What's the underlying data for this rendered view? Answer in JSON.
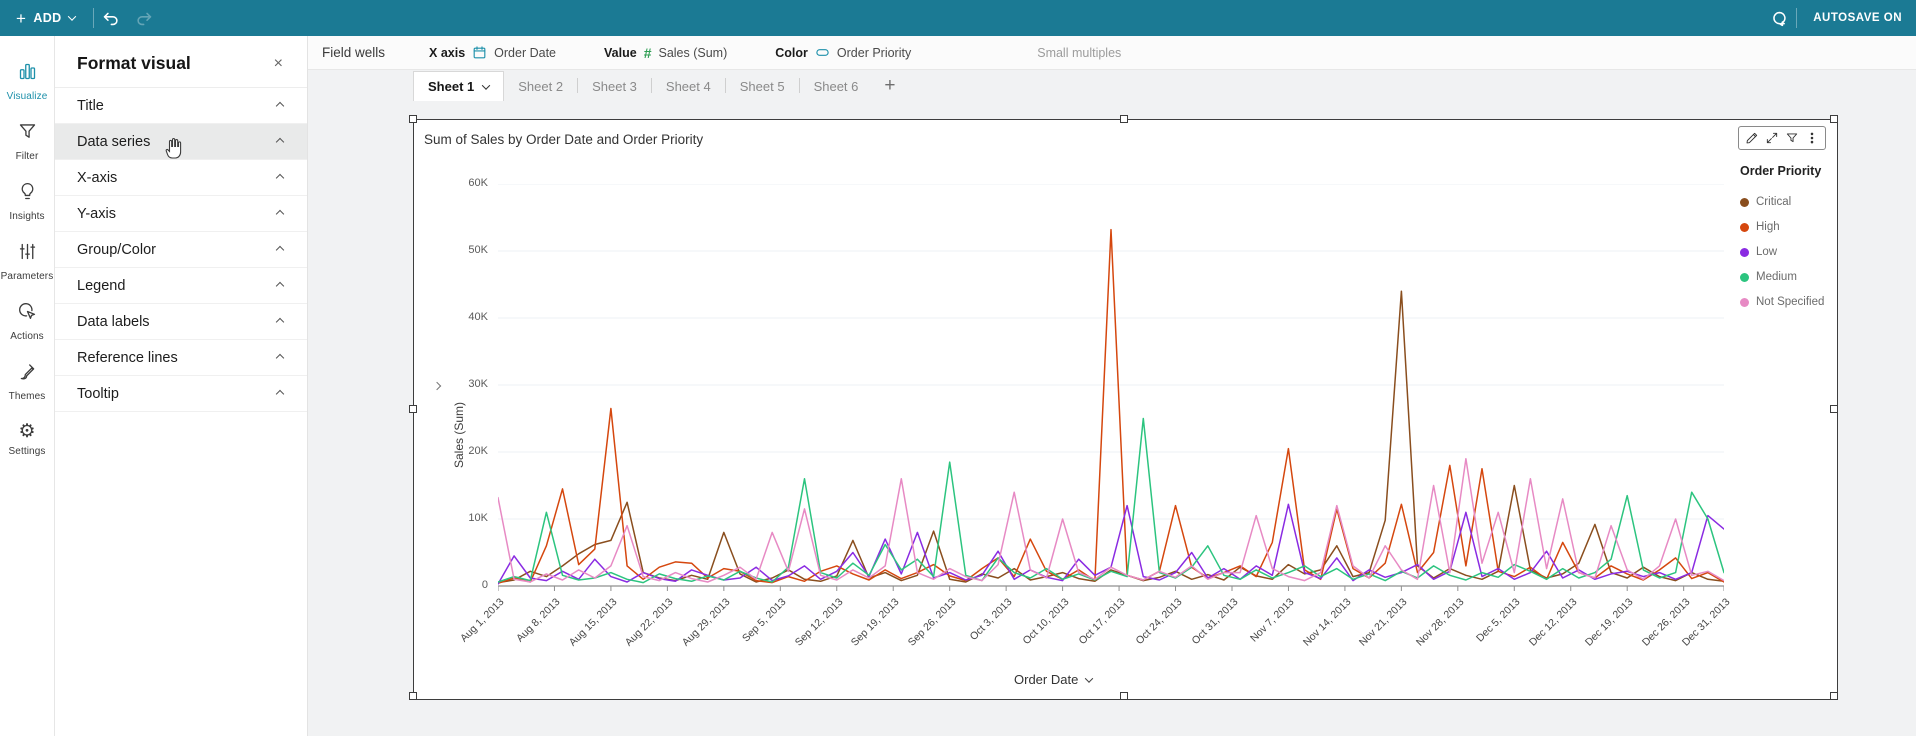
{
  "topbar": {
    "add_label": "ADD",
    "autosave_label": "AUTOSAVE ON"
  },
  "left_rail": {
    "items": [
      {
        "id": "visualize",
        "label": "Visualize",
        "icon": "bar-chart-icon",
        "active": true
      },
      {
        "id": "filter",
        "label": "Filter",
        "icon": "funnel-icon",
        "active": false
      },
      {
        "id": "insights",
        "label": "Insights",
        "icon": "lightbulb-icon",
        "active": false
      },
      {
        "id": "parameters",
        "label": "Parameters",
        "icon": "sliders-icon",
        "active": false
      },
      {
        "id": "actions",
        "label": "Actions",
        "icon": "cursor-click-icon",
        "active": false
      },
      {
        "id": "themes",
        "label": "Themes",
        "icon": "brush-icon",
        "active": false
      },
      {
        "id": "settings",
        "label": "Settings",
        "icon": "gear-icon",
        "active": false
      }
    ]
  },
  "format_panel": {
    "title": "Format visual",
    "close_label": "×",
    "active_section": "Data series",
    "sections": [
      "Title",
      "Data series",
      "X-axis",
      "Y-axis",
      "Group/Color",
      "Legend",
      "Data labels",
      "Reference lines",
      "Tooltip"
    ]
  },
  "field_wells": {
    "label": "Field wells",
    "wells": [
      {
        "name": "X axis",
        "field": "Order Date",
        "icon": "calendar-icon"
      },
      {
        "name": "Value",
        "field": "Sales (Sum)",
        "icon": "hash-icon"
      },
      {
        "name": "Color",
        "field": "Order Priority",
        "icon": "dimension-pill-icon"
      }
    ],
    "small_multiples_label": "Small multiples"
  },
  "sheet_tabs": {
    "tabs": [
      "Sheet 1",
      "Sheet 2",
      "Sheet 3",
      "Sheet 4",
      "Sheet 5",
      "Sheet 6"
    ],
    "active": "Sheet 1",
    "add_label": "+"
  },
  "visual": {
    "title": "Sum of Sales by Order Date and Order Priority",
    "toolbar_icons": [
      "pencil-icon",
      "expand-icon",
      "funnel-icon",
      "kebab-menu-icon"
    ]
  },
  "chart_data": {
    "type": "line",
    "title": "Sum of Sales by Order Date and Order Priority",
    "xlabel": "Order Date",
    "ylabel": "Sales (Sum)",
    "ylim": [
      0,
      60000
    ],
    "values_unit": "thousands",
    "grid": "horizontal",
    "y_ticks": [
      "0",
      "10K",
      "20K",
      "30K",
      "40K",
      "50K",
      "60K"
    ],
    "x_total_days": 152,
    "sample_interval_days": 2,
    "x_ticks": [
      {
        "label": "Aug 1, 2013",
        "day": 0
      },
      {
        "label": "Aug 8, 2013",
        "day": 7
      },
      {
        "label": "Aug 15, 2013",
        "day": 14
      },
      {
        "label": "Aug 22, 2013",
        "day": 21
      },
      {
        "label": "Aug 29, 2013",
        "day": 28
      },
      {
        "label": "Sep 5, 2013",
        "day": 35
      },
      {
        "label": "Sep 12, 2013",
        "day": 42
      },
      {
        "label": "Sep 19, 2013",
        "day": 49
      },
      {
        "label": "Sep 26, 2013",
        "day": 56
      },
      {
        "label": "Oct 3, 2013",
        "day": 63
      },
      {
        "label": "Oct 10, 2013",
        "day": 70
      },
      {
        "label": "Oct 17, 2013",
        "day": 77
      },
      {
        "label": "Oct 24, 2013",
        "day": 84
      },
      {
        "label": "Oct 31, 2013",
        "day": 91
      },
      {
        "label": "Nov 7, 2013",
        "day": 98
      },
      {
        "label": "Nov 14, 2013",
        "day": 105
      },
      {
        "label": "Nov 21, 2013",
        "day": 112
      },
      {
        "label": "Nov 28, 2013",
        "day": 119
      },
      {
        "label": "Dec 5, 2013",
        "day": 126
      },
      {
        "label": "Dec 12, 2013",
        "day": 133
      },
      {
        "label": "Dec 19, 2013",
        "day": 140
      },
      {
        "label": "Dec 26, 2013",
        "day": 147
      },
      {
        "label": "Dec 31, 2013",
        "day": 152
      }
    ],
    "legend": {
      "title": "Order Priority",
      "position": "right"
    },
    "series": [
      {
        "name": "Critical",
        "color": "#8a4e1e",
        "values": [
          0.5,
          0.9,
          2.2,
          1.4,
          3.0,
          4.8,
          6.2,
          6.8,
          12.5,
          2.0,
          1.2,
          0.8,
          1.6,
          1.0,
          8.0,
          1.8,
          0.6,
          1.2,
          2.4,
          1.0,
          0.7,
          1.5,
          6.8,
          1.2,
          2.0,
          0.8,
          1.6,
          8.2,
          1.0,
          0.6,
          1.8,
          1.2,
          2.6,
          0.9,
          1.4,
          2.0,
          1.1,
          0.7,
          2.4,
          1.6,
          0.8,
          1.3,
          2.2,
          1.0,
          1.7,
          0.9,
          2.8,
          1.5,
          1.0,
          3.2,
          1.8,
          2.4,
          6.0,
          1.4,
          2.0,
          9.8,
          44.0,
          3.0,
          1.2,
          2.6,
          1.6,
          1.0,
          2.2,
          15.0,
          2.4,
          1.2,
          1.8,
          3.4,
          9.2,
          2.0,
          1.2,
          2.8,
          1.4,
          0.8,
          2.0,
          1.0,
          0.7
        ]
      },
      {
        "name": "High",
        "color": "#d5470e",
        "values": [
          0.4,
          1.2,
          0.6,
          6.0,
          14.5,
          3.2,
          5.5,
          26.5,
          3.0,
          1.0,
          2.8,
          3.6,
          3.4,
          1.2,
          2.6,
          2.2,
          0.8,
          0.5,
          1.4,
          0.7,
          2.2,
          3.0,
          1.8,
          0.9,
          2.4,
          1.1,
          2.0,
          3.2,
          1.5,
          0.8,
          2.6,
          4.2,
          1.4,
          7.0,
          2.2,
          1.0,
          2.4,
          0.8,
          53.2,
          1.6,
          0.9,
          2.2,
          12.0,
          2.8,
          1.2,
          2.0,
          3.0,
          1.4,
          6.5,
          20.5,
          2.4,
          1.0,
          11.5,
          2.6,
          1.2,
          3.4,
          12.2,
          2.0,
          5.0,
          18.0,
          3.0,
          17.5,
          2.2,
          1.4,
          2.8,
          1.0,
          6.5,
          2.0,
          1.2,
          3.0,
          1.8,
          0.9,
          2.4,
          4.2,
          1.1,
          2.0,
          0.6
        ]
      },
      {
        "name": "Low",
        "color": "#8a2be2",
        "values": [
          0.3,
          4.5,
          1.2,
          0.8,
          2.2,
          1.0,
          4.0,
          1.4,
          0.6,
          2.0,
          1.1,
          0.7,
          2.4,
          1.6,
          0.9,
          1.2,
          2.8,
          0.8,
          1.5,
          3.0,
          1.0,
          2.2,
          5.0,
          1.4,
          7.0,
          1.8,
          8.0,
          1.2,
          2.0,
          0.9,
          1.6,
          5.2,
          1.0,
          2.4,
          1.3,
          0.8,
          4.0,
          1.6,
          2.8,
          12.0,
          1.4,
          0.9,
          2.0,
          5.0,
          1.2,
          2.6,
          1.0,
          3.0,
          1.6,
          12.2,
          2.0,
          1.1,
          4.2,
          0.8,
          2.4,
          1.3,
          2.0,
          3.2,
          1.0,
          2.2,
          11.0,
          1.4,
          2.6,
          1.0,
          2.0,
          5.2,
          1.2,
          2.4,
          1.0,
          1.8,
          2.2,
          1.4,
          2.0,
          1.0,
          2.0,
          10.5,
          8.5
        ]
      },
      {
        "name": "Medium",
        "color": "#2cc47f",
        "values": [
          0.6,
          1.4,
          0.8,
          11.0,
          1.6,
          0.9,
          1.2,
          2.0,
          1.0,
          0.5,
          1.8,
          1.1,
          0.7,
          1.5,
          0.9,
          2.2,
          1.2,
          0.6,
          2.8,
          16.0,
          2.0,
          1.2,
          3.4,
          1.6,
          6.2,
          2.4,
          4.0,
          1.4,
          18.5,
          1.6,
          0.8,
          4.2,
          2.0,
          1.2,
          2.6,
          1.0,
          1.8,
          0.9,
          2.2,
          1.4,
          25.0,
          2.0,
          1.2,
          2.8,
          6.0,
          1.6,
          1.0,
          2.4,
          1.2,
          2.0,
          3.0,
          1.4,
          2.6,
          1.0,
          1.8,
          0.8,
          2.2,
          1.2,
          3.0,
          1.6,
          0.9,
          2.0,
          1.3,
          3.2,
          2.2,
          1.0,
          2.6,
          1.2,
          2.0,
          4.0,
          13.5,
          2.4,
          1.2,
          2.0,
          14.0,
          10.0,
          2.0
        ]
      },
      {
        "name": "Not Specified",
        "color": "#e78ac4",
        "values": [
          13.2,
          1.0,
          0.6,
          1.8,
          0.9,
          2.4,
          1.2,
          3.0,
          9.0,
          1.4,
          0.8,
          2.0,
          1.1,
          0.6,
          1.6,
          2.8,
          1.0,
          8.0,
          2.2,
          11.5,
          1.6,
          0.9,
          2.4,
          1.2,
          3.0,
          16.0,
          2.0,
          1.0,
          2.6,
          1.4,
          0.8,
          3.2,
          14.0,
          2.4,
          1.2,
          10.0,
          2.0,
          1.0,
          2.8,
          1.6,
          0.9,
          2.2,
          1.3,
          3.0,
          1.0,
          2.0,
          2.0,
          10.5,
          2.6,
          1.4,
          0.8,
          2.0,
          12.0,
          3.0,
          1.2,
          6.0,
          2.4,
          1.0,
          15.0,
          2.0,
          19.0,
          3.4,
          11.0,
          2.0,
          16.0,
          2.6,
          13.0,
          2.0,
          1.2,
          9.0,
          2.4,
          1.0,
          3.0,
          10.0,
          1.6,
          2.2,
          0.8
        ]
      }
    ]
  }
}
